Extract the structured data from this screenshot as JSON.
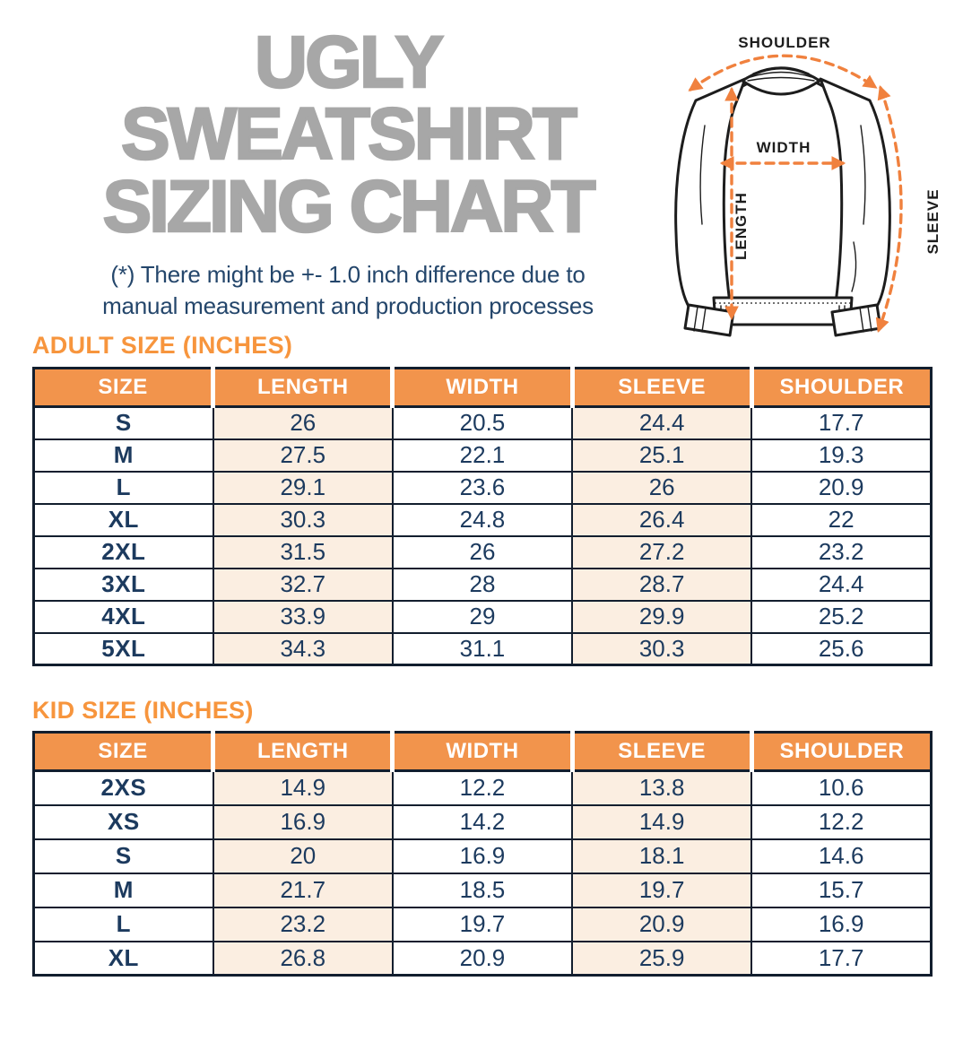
{
  "title": {
    "line1": "UGLY SWEATSHIRT",
    "line2": "SIZING CHART"
  },
  "disclaimer": {
    "line1": "(*) There might be +- 1.0 inch difference due to",
    "line2": "manual measurement and production processes"
  },
  "diagram": {
    "shoulder_label": "SHOULDER",
    "width_label": "WIDTH",
    "length_label": "LENGTH",
    "sleeve_label": "SLEEVE"
  },
  "colors": {
    "title_gray": "#a7a7a7",
    "navy_text": "#1c3a5e",
    "disclaimer_navy": "#24466b",
    "heading_orange": "#f7953d",
    "header_orange": "#f2944c",
    "peach_cell": "#fbeee1",
    "arrow_orange": "#f0813e",
    "table_border": "#121e2e"
  },
  "tables": {
    "adult": {
      "heading": "ADULT SIZE (INCHES)",
      "columns": [
        "SIZE",
        "LENGTH",
        "WIDTH",
        "SLEEVE",
        "SHOULDER"
      ],
      "rows": [
        [
          "S",
          "26",
          "20.5",
          "24.4",
          "17.7"
        ],
        [
          "M",
          "27.5",
          "22.1",
          "25.1",
          "19.3"
        ],
        [
          "L",
          "29.1",
          "23.6",
          "26",
          "20.9"
        ],
        [
          "XL",
          "30.3",
          "24.8",
          "26.4",
          "22"
        ],
        [
          "2XL",
          "31.5",
          "26",
          "27.2",
          "23.2"
        ],
        [
          "3XL",
          "32.7",
          "28",
          "28.7",
          "24.4"
        ],
        [
          "4XL",
          "33.9",
          "29",
          "29.9",
          "25.2"
        ],
        [
          "5XL",
          "34.3",
          "31.1",
          "30.3",
          "25.6"
        ]
      ]
    },
    "kid": {
      "heading": "KID SIZE (INCHES)",
      "columns": [
        "SIZE",
        "LENGTH",
        "WIDTH",
        "SLEEVE",
        "SHOULDER"
      ],
      "rows": [
        [
          "2XS",
          "14.9",
          "12.2",
          "13.8",
          "10.6"
        ],
        [
          "XS",
          "16.9",
          "14.2",
          "14.9",
          "12.2"
        ],
        [
          "S",
          "20",
          "16.9",
          "18.1",
          "14.6"
        ],
        [
          "M",
          "21.7",
          "18.5",
          "19.7",
          "15.7"
        ],
        [
          "L",
          "23.2",
          "19.7",
          "20.9",
          "16.9"
        ],
        [
          "XL",
          "26.8",
          "20.9",
          "25.9",
          "17.7"
        ]
      ]
    }
  },
  "chart_data": [
    {
      "type": "table",
      "title": "ADULT SIZE (INCHES)",
      "columns": [
        "SIZE",
        "LENGTH",
        "WIDTH",
        "SLEEVE",
        "SHOULDER"
      ],
      "rows": [
        [
          "S",
          26,
          20.5,
          24.4,
          17.7
        ],
        [
          "M",
          27.5,
          22.1,
          25.1,
          19.3
        ],
        [
          "L",
          29.1,
          23.6,
          26,
          20.9
        ],
        [
          "XL",
          30.3,
          24.8,
          26.4,
          22
        ],
        [
          "2XL",
          31.5,
          26,
          27.2,
          23.2
        ],
        [
          "3XL",
          32.7,
          28,
          28.7,
          24.4
        ],
        [
          "4XL",
          33.9,
          29,
          29.9,
          25.2
        ],
        [
          "5XL",
          34.3,
          31.1,
          30.3,
          25.6
        ]
      ]
    },
    {
      "type": "table",
      "title": "KID SIZE (INCHES)",
      "columns": [
        "SIZE",
        "LENGTH",
        "WIDTH",
        "SLEEVE",
        "SHOULDER"
      ],
      "rows": [
        [
          "2XS",
          14.9,
          12.2,
          13.8,
          10.6
        ],
        [
          "XS",
          16.9,
          14.2,
          14.9,
          12.2
        ],
        [
          "S",
          20,
          16.9,
          18.1,
          14.6
        ],
        [
          "M",
          21.7,
          18.5,
          19.7,
          15.7
        ],
        [
          "L",
          23.2,
          19.7,
          20.9,
          16.9
        ],
        [
          "XL",
          26.8,
          20.9,
          25.9,
          17.7
        ]
      ]
    }
  ]
}
